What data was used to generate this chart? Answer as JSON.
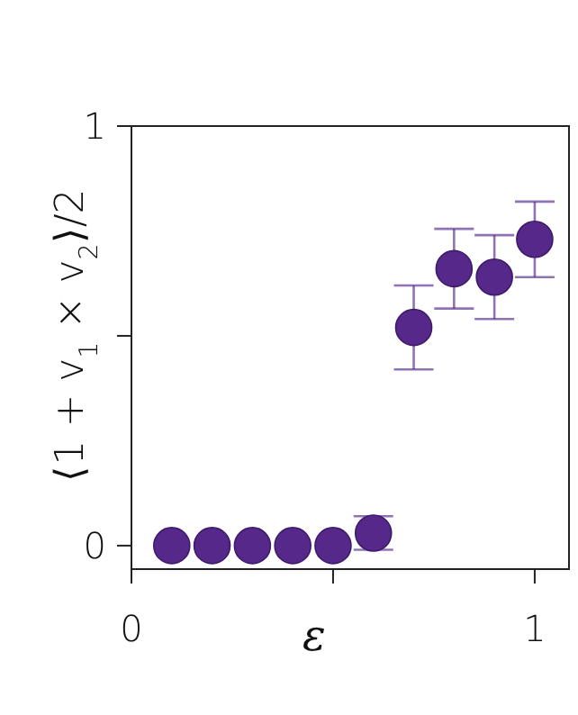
{
  "chart_data": {
    "type": "scatter",
    "xlabel": "ε",
    "ylabel": "⟨1 + v$_{1}$ × v$_{2}$⟩/2",
    "x": [
      0.1,
      0.2,
      0.3,
      0.4,
      0.5,
      0.6,
      0.7,
      0.8,
      0.9,
      1.0
    ],
    "series": [
      {
        "color": "#55288a",
        "values": [
          0,
          0,
          0,
          0,
          0,
          0.03,
          0.52,
          0.66,
          0.64,
          0.73
        ],
        "errors": [
          null,
          null,
          null,
          null,
          null,
          0.04,
          0.1,
          0.095,
          0.1,
          0.09
        ]
      }
    ],
    "xlim": [
      0,
      1.085
    ],
    "ylim": [
      -0.056,
      1
    ],
    "xticks": [
      0,
      {
        "value": 0.5,
        "label": null
      },
      1
    ],
    "yticks": [
      0,
      {
        "value": 0.5,
        "label": null
      },
      1
    ],
    "marker": "circle",
    "grid": false
  }
}
